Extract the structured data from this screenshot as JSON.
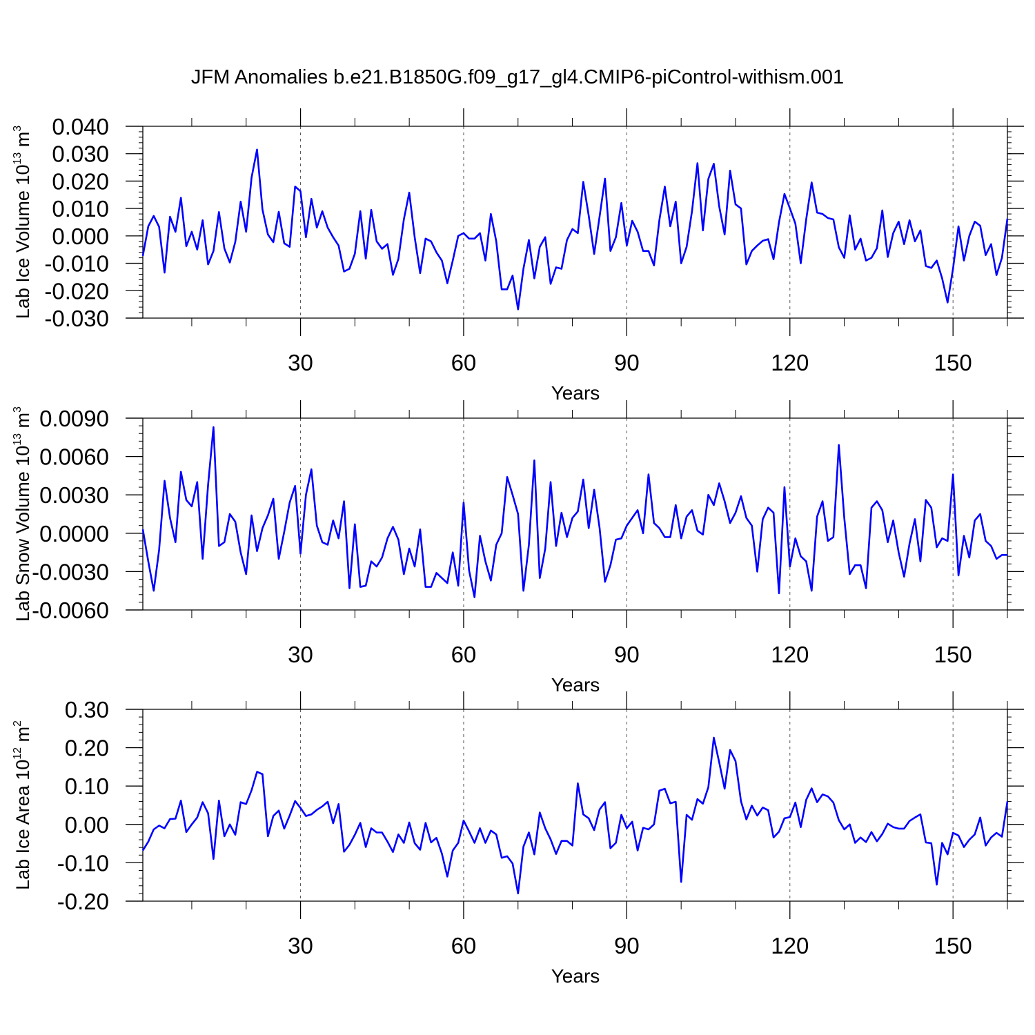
{
  "title": "JFM Anomalies b.e21.B1850G.f09_g17_gl4.CMIP6-piControl-withism.001",
  "chart_data": [
    {
      "type": "line",
      "ylabel": "Lab Ice Volume 10",
      "ylabel_exp": "13",
      "ylabel_unit": " m",
      "ylabel_unit_exp": "3",
      "xlabel": "Years",
      "xlim": [
        1,
        160
      ],
      "ylim": [
        -0.03,
        0.04
      ],
      "yticks": [
        -0.03,
        -0.02,
        -0.01,
        0.0,
        0.01,
        0.02,
        0.03,
        0.04
      ],
      "ytick_labels": [
        "-0.030",
        "-0.020",
        "-0.010",
        "0.000",
        "0.010",
        "0.020",
        "0.030",
        "0.040"
      ],
      "yminor_step": 0.002,
      "xticks": [
        30,
        60,
        90,
        120,
        150
      ],
      "xtick_labels": [
        "30",
        "60",
        "90",
        "120",
        "150"
      ],
      "xminor_step": 10,
      "vlines": [
        30,
        60,
        90,
        120,
        150
      ],
      "color": "#0000ff",
      "series": [
        {
          "x_start": 1,
          "values": [
            -0.0073,
            0.0035,
            0.0073,
            0.0033,
            -0.0134,
            0.007,
            0.0015,
            0.0139,
            -0.0038,
            0.0015,
            -0.005,
            0.0057,
            -0.0104,
            -0.0055,
            0.0087,
            -0.0046,
            -0.0097,
            -0.0022,
            0.0125,
            0.0015,
            0.0213,
            0.0315,
            0.0096,
            0.0005,
            -0.0023,
            0.0088,
            -0.0027,
            -0.004,
            0.018,
            0.0163,
            -0.0005,
            0.0135,
            0.003,
            0.009,
            0.003,
            -0.0005,
            -0.0035,
            -0.013,
            -0.012,
            -0.0065,
            0.009,
            -0.0083,
            0.0095,
            -0.002,
            -0.0047,
            -0.003,
            -0.0142,
            -0.0084,
            0.006,
            0.0158,
            -0.0005,
            -0.0136,
            -0.001,
            -0.002,
            -0.006,
            -0.009,
            -0.0173,
            -0.009,
            0.0,
            0.001,
            -0.001,
            -0.001,
            0.001,
            -0.009,
            0.008,
            -0.002,
            -0.0195,
            -0.0195,
            -0.0145,
            -0.0268,
            -0.012,
            -0.0015,
            -0.0155,
            -0.004,
            -0.0005,
            -0.0175,
            -0.0115,
            -0.012,
            -0.0015,
            0.0025,
            0.001,
            0.0197,
            0.0074,
            -0.0066,
            0.0071,
            0.0209,
            -0.0055,
            -0.0005,
            0.012,
            -0.0035,
            0.0055,
            0.0015,
            -0.0055,
            -0.0055,
            -0.0108,
            0.0057,
            0.018,
            0.0035,
            0.0125,
            -0.01,
            -0.004,
            0.009,
            0.0265,
            0.002,
            0.0208,
            0.0263,
            0.0108,
            0.0005,
            0.0238,
            0.0115,
            0.01,
            -0.0104,
            -0.0055,
            -0.0035,
            -0.0018,
            -0.0012,
            -0.0085,
            0.005,
            0.0153,
            0.01,
            0.0045,
            -0.01,
            0.006,
            0.0195,
            0.0085,
            0.008,
            0.0065,
            0.006,
            -0.0042,
            -0.008,
            0.0075,
            -0.005,
            -0.001,
            -0.009,
            -0.008,
            -0.0045,
            0.0093,
            -0.0077,
            0.001,
            0.0052,
            -0.003,
            0.0057,
            -0.002,
            0.002,
            -0.011,
            -0.0117,
            -0.009,
            -0.0155,
            -0.0243,
            -0.012,
            0.0035,
            -0.009,
            0.0,
            0.0052,
            0.0037,
            -0.007,
            -0.003,
            -0.0143,
            -0.008,
            0.0063
          ]
        }
      ]
    },
    {
      "type": "line",
      "ylabel": "Lab Snow Volume 10",
      "ylabel_exp": "13",
      "ylabel_unit": " m",
      "ylabel_unit_exp": "3",
      "xlabel": "Years",
      "xlim": [
        1,
        160
      ],
      "ylim": [
        -0.006,
        0.009
      ],
      "yticks": [
        -0.006,
        -0.003,
        0.0,
        0.003,
        0.006,
        0.009
      ],
      "ytick_labels": [
        "-0.0060",
        "-0.0030",
        "0.0000",
        "0.0030",
        "0.0060",
        "0.0090"
      ],
      "yminor_step": 0.0006,
      "xticks": [
        30,
        60,
        90,
        120,
        150
      ],
      "xtick_labels": [
        "30",
        "60",
        "90",
        "120",
        "150"
      ],
      "xminor_step": 10,
      "vlines": [
        30,
        60,
        90,
        120,
        150
      ],
      "color": "#0000ff",
      "series": [
        {
          "x_start": 1,
          "values": [
            0.0003,
            -0.0022,
            -0.0045,
            -0.0013,
            0.0041,
            0.0012,
            -0.0007,
            0.0048,
            0.0026,
            0.0021,
            0.004,
            -0.002,
            0.0038,
            0.0083,
            -0.001,
            -0.0007,
            0.0015,
            0.0009,
            -0.0015,
            -0.0032,
            0.0014,
            -0.0014,
            0.0004,
            0.0014,
            0.0027,
            -0.002,
            0.0001,
            0.0024,
            0.0037,
            -0.0016,
            0.003,
            0.005,
            0.0006,
            -0.0007,
            -0.0009,
            0.001,
            -0.0004,
            0.0025,
            -0.0043,
            0.0007,
            -0.0042,
            -0.0041,
            -0.0022,
            -0.0026,
            -0.0019,
            -0.0004,
            0.0005,
            -0.0005,
            -0.0032,
            -0.0012,
            -0.0026,
            0.0003,
            -0.0042,
            -0.0042,
            -0.0031,
            -0.0035,
            -0.0039,
            -0.0015,
            -0.0041,
            0.0024,
            -0.0029,
            -0.005,
            -0.0002,
            -0.0022,
            -0.0037,
            -0.0009,
            0.0,
            0.0044,
            0.003,
            0.0015,
            -0.0045,
            -0.0009,
            0.0057,
            -0.0035,
            -0.0012,
            0.004,
            -0.001,
            0.0016,
            -0.0003,
            0.0012,
            0.0017,
            0.0042,
            0.0004,
            0.0034,
            0.0004,
            -0.0038,
            -0.0025,
            -0.0005,
            -0.0004,
            0.0006,
            0.0012,
            0.0018,
            0.0,
            0.0046,
            0.0008,
            0.0004,
            -0.0003,
            -0.0003,
            0.0022,
            -0.0004,
            0.0013,
            0.0018,
            0.0002,
            -0.0001,
            0.003,
            0.0022,
            0.0039,
            0.0025,
            0.0008,
            0.0016,
            0.0029,
            0.0012,
            0.0006,
            -0.003,
            0.0011,
            0.002,
            0.0016,
            -0.0047,
            0.0036,
            -0.0026,
            -0.0004,
            -0.0018,
            -0.0022,
            -0.0045,
            0.0013,
            0.0025,
            -0.0006,
            -0.0003,
            0.0069,
            0.0012,
            -0.0032,
            -0.0025,
            -0.0025,
            -0.0043,
            0.002,
            0.0025,
            0.0018,
            -0.0007,
            0.001,
            -0.0015,
            -0.0034,
            -0.0008,
            0.0011,
            -0.0022,
            0.0026,
            0.002,
            -0.0011,
            -0.0004,
            -0.0006,
            0.0046,
            -0.0033,
            -0.0002,
            -0.0019,
            0.001,
            0.0015,
            -0.0006,
            -0.001,
            -0.002,
            -0.0017,
            -0.0017
          ]
        }
      ]
    },
    {
      "type": "line",
      "ylabel": "Lab Ice Area 10",
      "ylabel_exp": "12",
      "ylabel_unit": " m",
      "ylabel_unit_exp": "2",
      "xlabel": "Years",
      "xlim": [
        1,
        160
      ],
      "ylim": [
        -0.2,
        0.3
      ],
      "yticks": [
        -0.2,
        -0.1,
        0.0,
        0.1,
        0.2,
        0.3
      ],
      "ytick_labels": [
        "-0.20",
        "-0.10",
        "0.00",
        "0.10",
        "0.20",
        "0.30"
      ],
      "yminor_step": 0.02,
      "xticks": [
        30,
        60,
        90,
        120,
        150
      ],
      "xtick_labels": [
        "30",
        "60",
        "90",
        "120",
        "150"
      ],
      "xminor_step": 10,
      "vlines": [
        30,
        60,
        90,
        120,
        150
      ],
      "color": "#0000ff",
      "series": [
        {
          "x_start": 1,
          "values": [
            -0.068,
            -0.045,
            -0.013,
            -0.003,
            -0.01,
            0.014,
            0.015,
            0.062,
            -0.02,
            0.0,
            0.018,
            0.058,
            0.029,
            -0.09,
            0.062,
            -0.031,
            0.0,
            -0.027,
            0.058,
            0.053,
            0.089,
            0.137,
            0.131,
            -0.031,
            0.022,
            0.036,
            -0.011,
            0.023,
            0.061,
            0.043,
            0.022,
            0.026,
            0.038,
            0.047,
            0.059,
            0.003,
            0.053,
            -0.071,
            -0.053,
            -0.027,
            0.004,
            -0.059,
            -0.01,
            -0.021,
            -0.021,
            -0.045,
            -0.072,
            -0.026,
            -0.048,
            0.005,
            -0.049,
            -0.066,
            0.004,
            -0.047,
            -0.035,
            -0.076,
            -0.136,
            -0.068,
            -0.048,
            0.01,
            -0.018,
            -0.048,
            -0.01,
            -0.048,
            -0.016,
            -0.026,
            -0.087,
            -0.083,
            -0.102,
            -0.18,
            -0.058,
            -0.021,
            -0.078,
            0.031,
            -0.01,
            -0.039,
            -0.077,
            -0.043,
            -0.043,
            -0.055,
            0.107,
            0.026,
            0.016,
            -0.015,
            0.039,
            0.058,
            -0.062,
            -0.048,
            0.025,
            -0.01,
            0.007,
            -0.068,
            -0.009,
            -0.013,
            0.0,
            0.088,
            0.093,
            0.055,
            0.059,
            -0.15,
            0.025,
            0.012,
            0.066,
            0.054,
            0.097,
            0.226,
            0.162,
            0.093,
            0.194,
            0.165,
            0.06,
            0.013,
            0.049,
            0.023,
            0.044,
            0.037,
            -0.034,
            -0.019,
            0.016,
            0.019,
            0.057,
            -0.007,
            0.064,
            0.094,
            0.058,
            0.078,
            0.073,
            0.057,
            0.011,
            -0.013,
            0.0,
            -0.048,
            -0.034,
            -0.046,
            -0.02,
            -0.044,
            -0.025,
            0.002,
            -0.007,
            -0.011,
            -0.011,
            0.009,
            0.018,
            0.026,
            -0.047,
            -0.049,
            -0.157,
            -0.048,
            -0.078,
            -0.022,
            -0.029,
            -0.059,
            -0.04,
            -0.026,
            0.018,
            -0.055,
            -0.034,
            -0.022,
            -0.032,
            0.06
          ]
        }
      ]
    }
  ]
}
